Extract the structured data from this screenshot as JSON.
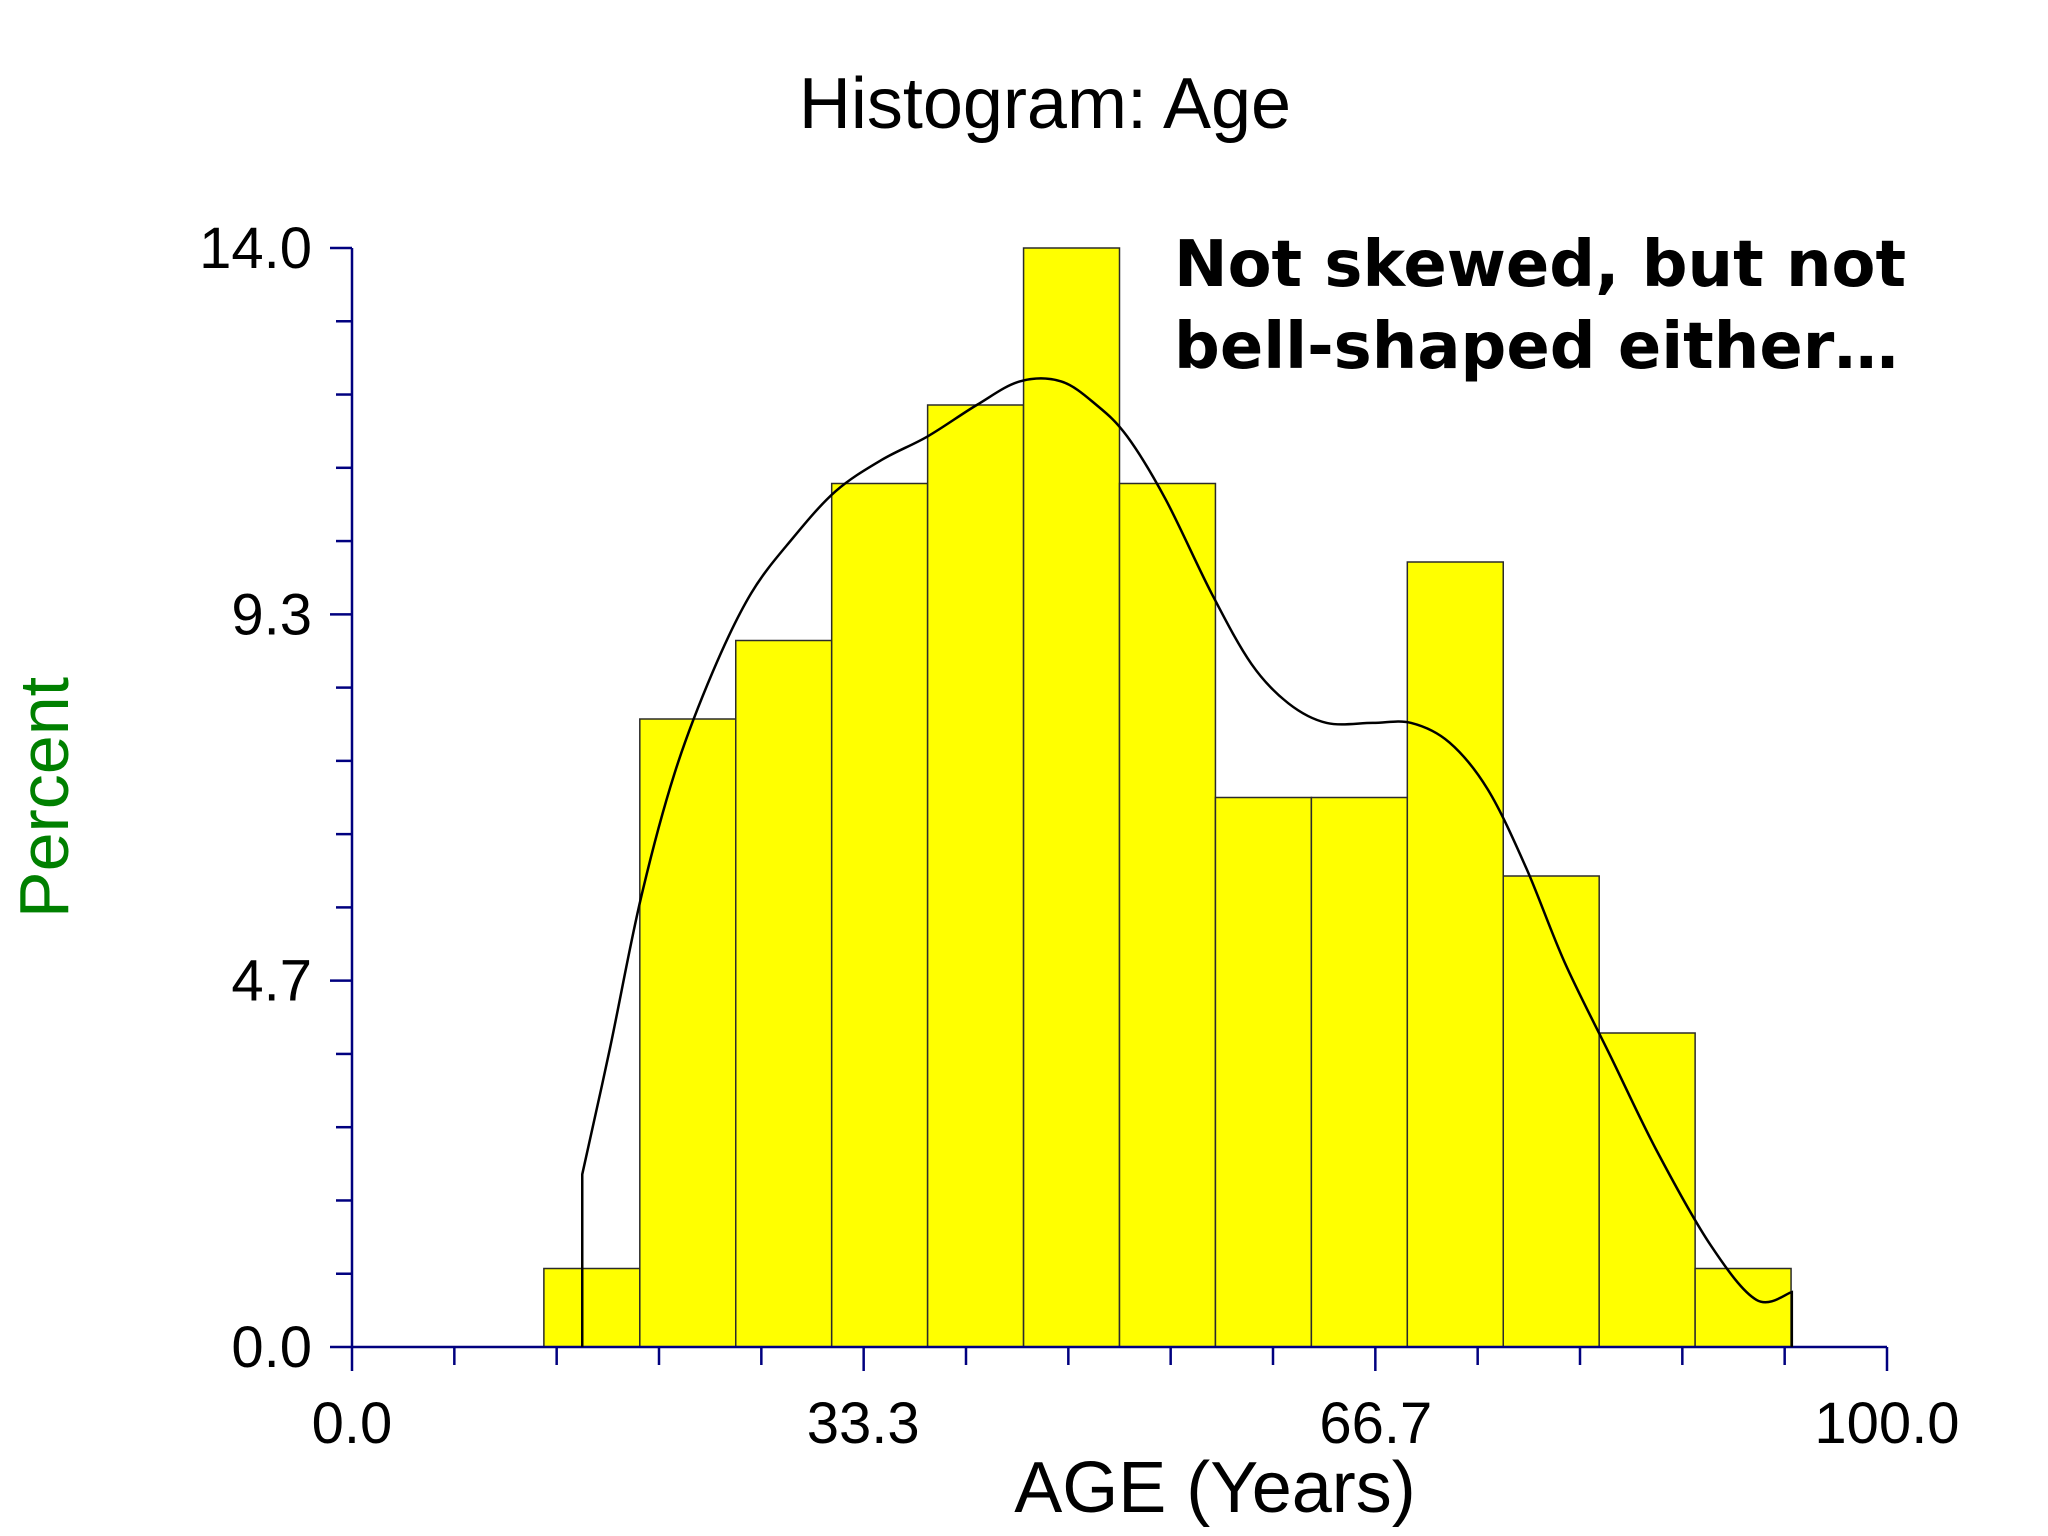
{
  "chart_data": {
    "type": "bar",
    "title": "Histogram: Age",
    "annotation_lines": [
      "Not skewed, but not",
      "bell-shaped either…"
    ],
    "xlabel": "AGE (Years)",
    "ylabel": "Percent",
    "xlim": [
      0,
      100
    ],
    "ylim": [
      0,
      14
    ],
    "x_tick_labels": [
      "0.0",
      "33.3",
      "66.7",
      "100.0"
    ],
    "x_tick_values": [
      0,
      33.3,
      66.7,
      100
    ],
    "y_tick_labels": [
      "0.0",
      "4.7",
      "9.3",
      "14.0"
    ],
    "y_tick_values": [
      0,
      4.667,
      9.333,
      14
    ],
    "bins": [
      {
        "start": 12.5,
        "end": 18.75,
        "value": 1.0
      },
      {
        "start": 18.75,
        "end": 25.0,
        "value": 8.0
      },
      {
        "start": 25.0,
        "end": 31.25,
        "value": 9.0
      },
      {
        "start": 31.25,
        "end": 37.5,
        "value": 11.0
      },
      {
        "start": 37.5,
        "end": 43.75,
        "value": 12.0
      },
      {
        "start": 43.75,
        "end": 50.0,
        "value": 14.0
      },
      {
        "start": 50.0,
        "end": 56.25,
        "value": 11.0
      },
      {
        "start": 56.25,
        "end": 62.5,
        "value": 7.0
      },
      {
        "start": 62.5,
        "end": 68.75,
        "value": 7.0
      },
      {
        "start": 68.75,
        "end": 75.0,
        "value": 10.0
      },
      {
        "start": 75.0,
        "end": 81.25,
        "value": 6.0
      },
      {
        "start": 81.25,
        "end": 87.5,
        "value": 4.0
      },
      {
        "start": 87.5,
        "end": 93.75,
        "value": 1.0
      }
    ],
    "density_curve": {
      "x": [
        15,
        16.8,
        18.8,
        21,
        23.5,
        26,
        28.7,
        31.5,
        34.5,
        37.5,
        40.7,
        43.5,
        46.2,
        48.5,
        50.5,
        53,
        56,
        58.6,
        61,
        63.5,
        66.5,
        69,
        71.5,
        74,
        76.5,
        79,
        82,
        85,
        88.5,
        91.5,
        93.8
      ],
      "y": [
        2.2,
        3.8,
        5.7,
        7.3,
        8.6,
        9.6,
        10.3,
        10.9,
        11.3,
        11.6,
        12.0,
        12.3,
        12.3,
        12.0,
        11.6,
        10.8,
        9.6,
        8.7,
        8.2,
        7.95,
        7.95,
        7.95,
        7.7,
        7.1,
        6.1,
        4.9,
        3.7,
        2.5,
        1.3,
        0.6,
        0.7
      ],
      "start_drop_to": 0,
      "end_drop_to": 0
    },
    "grid": false,
    "legend": "none",
    "colors": {
      "bar_fill": "#ffff00",
      "bar_stroke": "#2b2b2b",
      "axis": "#00007f",
      "curve": "#000000",
      "ylabel": "#008000"
    }
  }
}
